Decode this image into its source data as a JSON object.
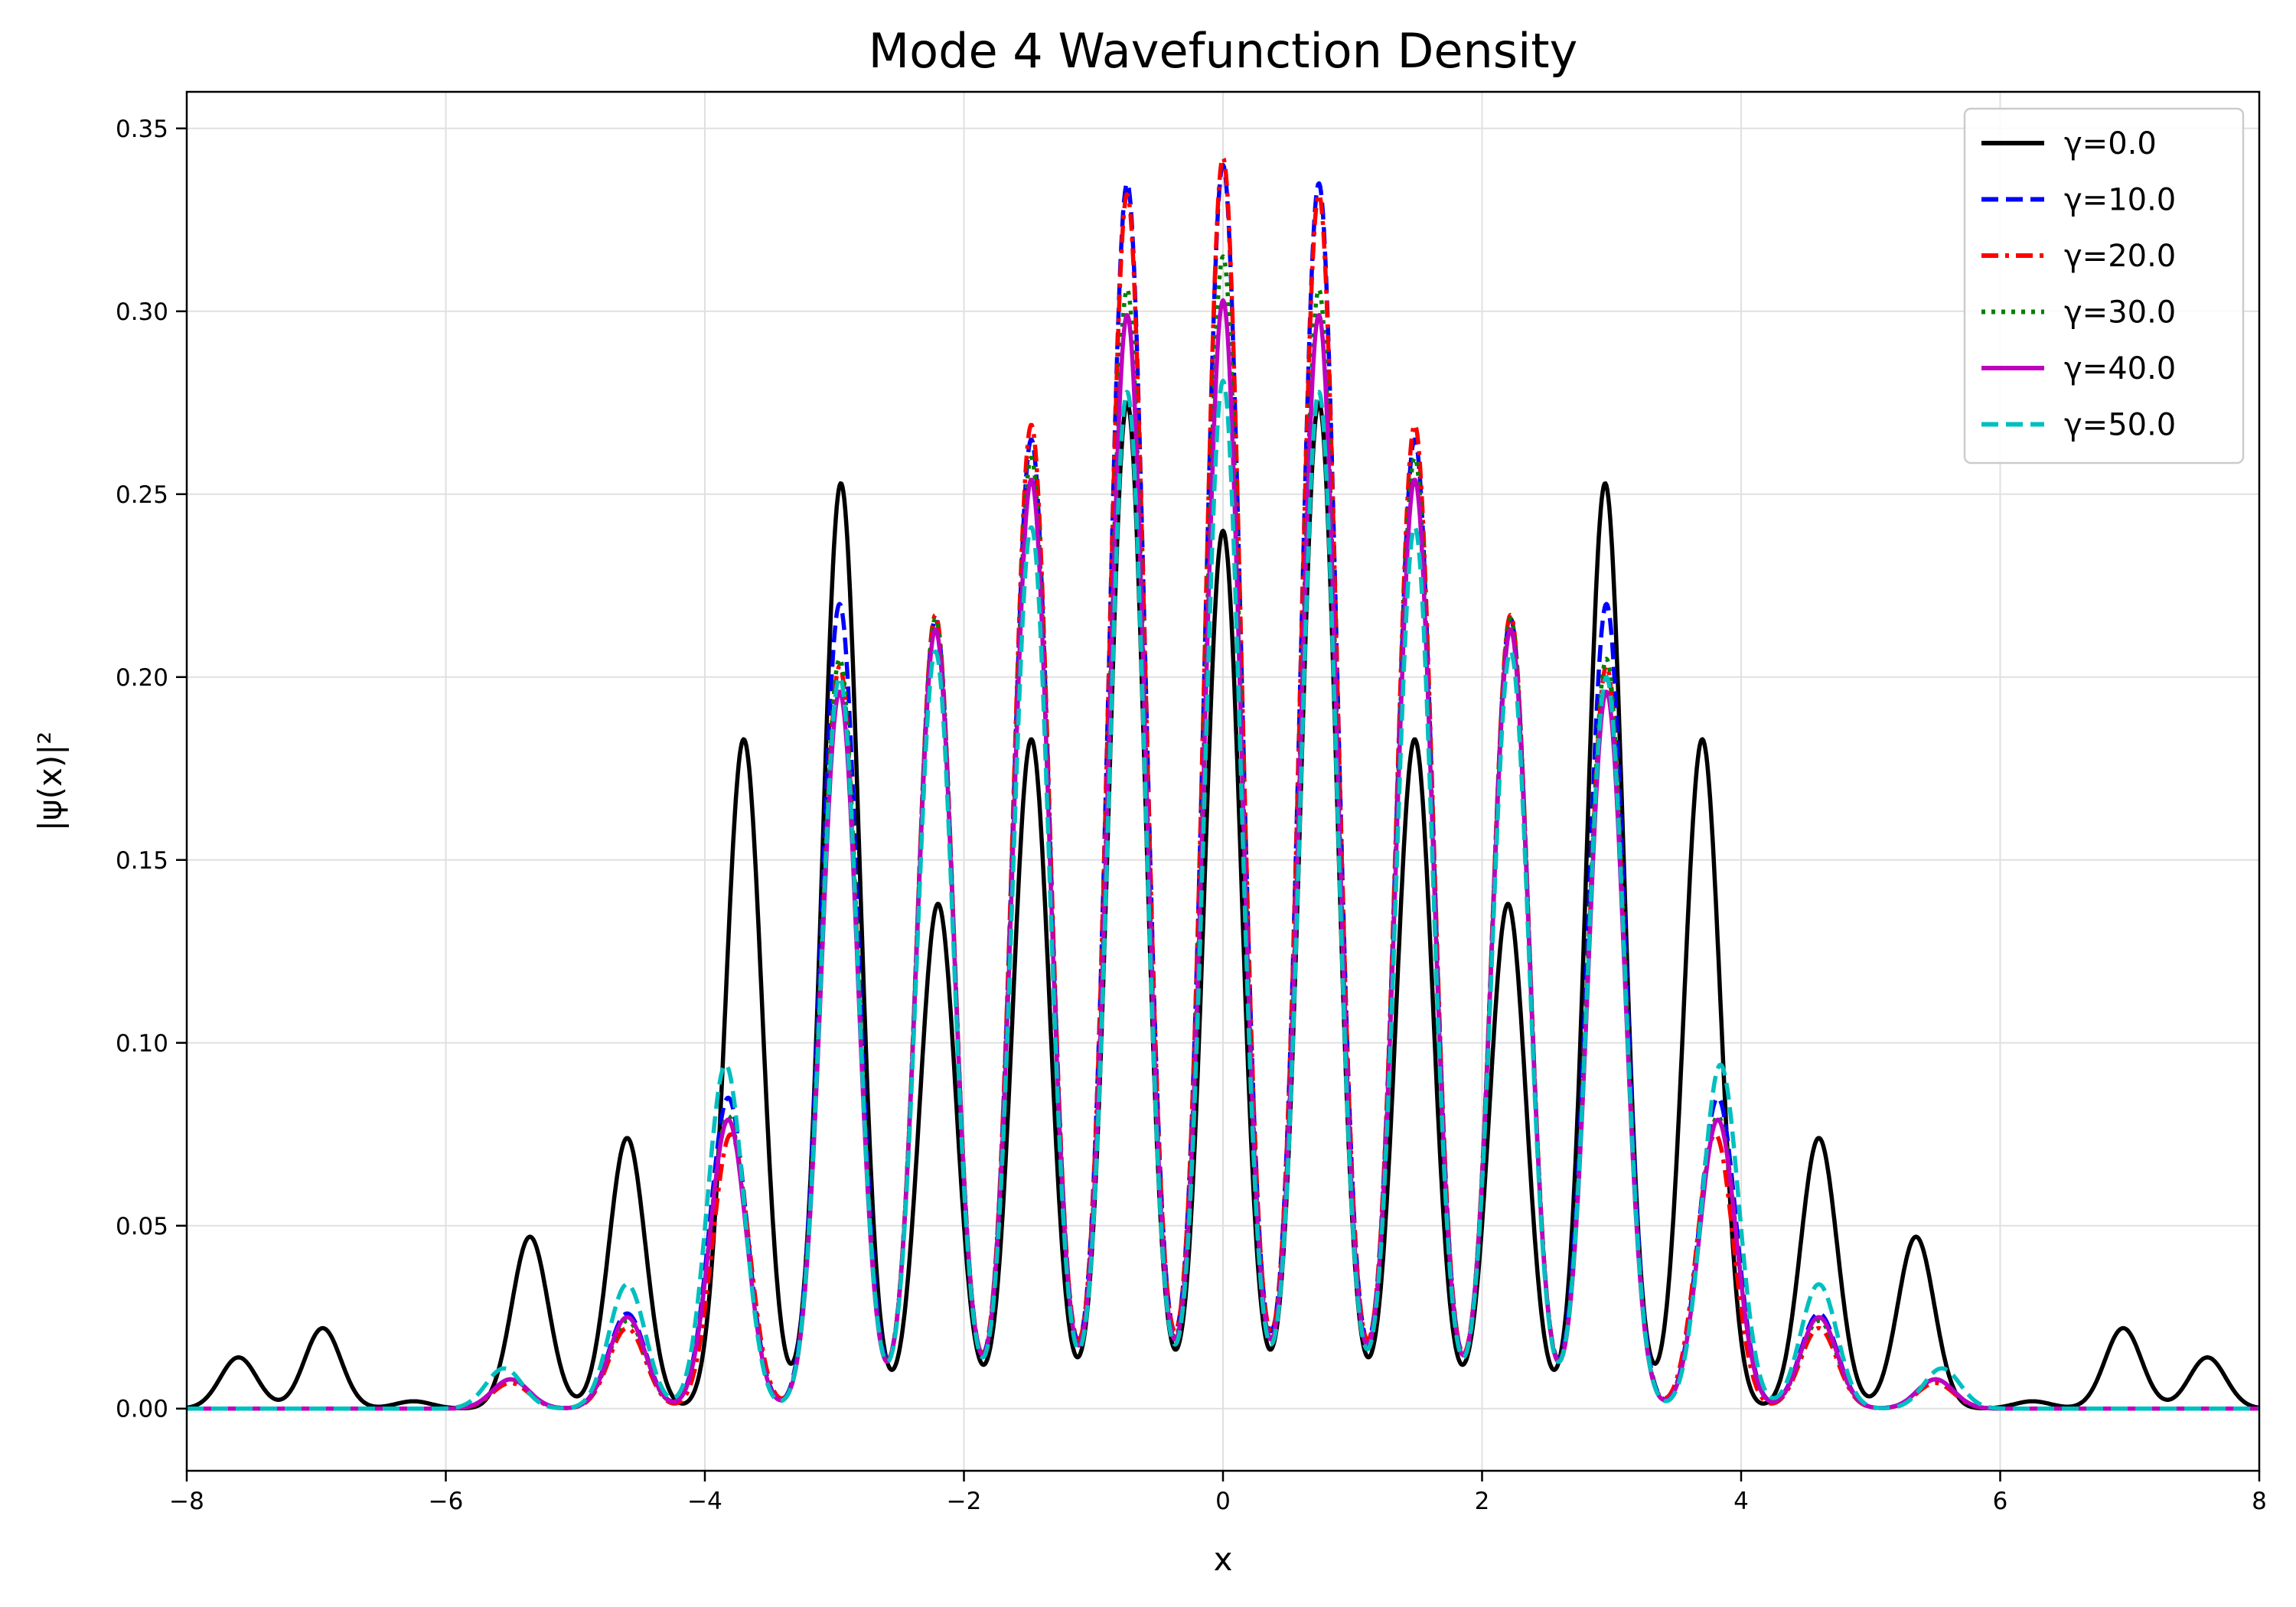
{
  "chart_data": {
    "type": "line",
    "title": "Mode 4 Wavefunction Density",
    "xlabel": "x",
    "ylabel": "|ψ(x)|²",
    "xlim": [
      -8,
      8
    ],
    "ylim": [
      -0.017,
      0.36
    ],
    "xticks": [
      -8,
      -6,
      -4,
      -2,
      0,
      2,
      4,
      6,
      8
    ],
    "xtick_labels": [
      "−8",
      "−6",
      "−4",
      "−2",
      "0",
      "2",
      "4",
      "6",
      "8"
    ],
    "yticks": [
      0.0,
      0.05,
      0.1,
      0.15,
      0.2,
      0.25,
      0.3,
      0.35
    ],
    "ytick_labels": [
      "0.00",
      "0.05",
      "0.10",
      "0.15",
      "0.20",
      "0.25",
      "0.30",
      "0.35"
    ],
    "grid": true,
    "legend_position": "top-right",
    "peak_spacing": 0.74,
    "series": [
      {
        "name": "γ=0.0",
        "color": "#000000",
        "dash": "solid",
        "peaks": [
          {
            "x": 0.0,
            "y": 0.24
          },
          {
            "x": 0.74,
            "y": 0.275
          },
          {
            "x": 1.48,
            "y": 0.183
          },
          {
            "x": 2.2,
            "y": 0.138
          },
          {
            "x": 2.95,
            "y": 0.253
          },
          {
            "x": 3.7,
            "y": 0.183
          },
          {
            "x": 4.6,
            "y": 0.074
          },
          {
            "x": 5.35,
            "y": 0.047
          },
          {
            "x": 6.25,
            "y": 0.002
          },
          {
            "x": 6.95,
            "y": 0.022
          },
          {
            "x": 7.6,
            "y": 0.014
          }
        ]
      },
      {
        "name": "γ=10.0",
        "color": "#0000ff",
        "dash": "dashed",
        "peaks": [
          {
            "x": 0.0,
            "y": 0.34
          },
          {
            "x": 0.74,
            "y": 0.335
          },
          {
            "x": 1.48,
            "y": 0.265
          },
          {
            "x": 2.22,
            "y": 0.216
          },
          {
            "x": 2.96,
            "y": 0.22
          },
          {
            "x": 3.82,
            "y": 0.085
          },
          {
            "x": 4.6,
            "y": 0.026
          },
          {
            "x": 5.5,
            "y": 0.008
          }
        ]
      },
      {
        "name": "γ=20.0",
        "color": "#ff0000",
        "dash": "dashdot",
        "peaks": [
          {
            "x": 0.0,
            "y": 0.342
          },
          {
            "x": 0.74,
            "y": 0.332
          },
          {
            "x": 1.48,
            "y": 0.269
          },
          {
            "x": 2.22,
            "y": 0.217
          },
          {
            "x": 2.96,
            "y": 0.203
          },
          {
            "x": 3.8,
            "y": 0.075
          },
          {
            "x": 4.6,
            "y": 0.022
          },
          {
            "x": 5.5,
            "y": 0.007
          }
        ]
      },
      {
        "name": "γ=30.0",
        "color": "#008000",
        "dash": "dotted",
        "peaks": [
          {
            "x": 0.0,
            "y": 0.315
          },
          {
            "x": 0.74,
            "y": 0.306
          },
          {
            "x": 1.48,
            "y": 0.26
          },
          {
            "x": 2.22,
            "y": 0.216
          },
          {
            "x": 2.96,
            "y": 0.205
          },
          {
            "x": 3.82,
            "y": 0.08
          },
          {
            "x": 4.6,
            "y": 0.024
          },
          {
            "x": 5.5,
            "y": 0.008
          }
        ]
      },
      {
        "name": "γ=40.0",
        "color": "#bf00bf",
        "dash": "solid",
        "peaks": [
          {
            "x": 0.0,
            "y": 0.303
          },
          {
            "x": 0.74,
            "y": 0.299
          },
          {
            "x": 1.48,
            "y": 0.254
          },
          {
            "x": 2.22,
            "y": 0.213
          },
          {
            "x": 2.96,
            "y": 0.196
          },
          {
            "x": 3.82,
            "y": 0.079
          },
          {
            "x": 4.6,
            "y": 0.025
          },
          {
            "x": 5.5,
            "y": 0.008
          }
        ]
      },
      {
        "name": "γ=50.0",
        "color": "#00bfbf",
        "dash": "dashed",
        "peaks": [
          {
            "x": 0.0,
            "y": 0.281
          },
          {
            "x": 0.74,
            "y": 0.278
          },
          {
            "x": 1.48,
            "y": 0.241
          },
          {
            "x": 2.22,
            "y": 0.207
          },
          {
            "x": 2.96,
            "y": 0.2
          },
          {
            "x": 3.84,
            "y": 0.094
          },
          {
            "x": 4.6,
            "y": 0.034
          },
          {
            "x": 5.55,
            "y": 0.011
          }
        ]
      }
    ]
  }
}
